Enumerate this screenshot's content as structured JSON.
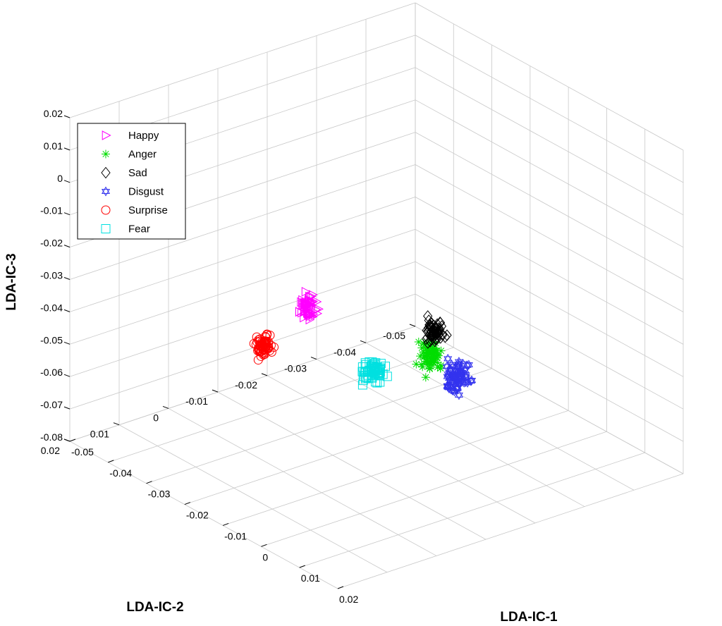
{
  "chart_data": {
    "type": "scatter",
    "projection": "3d",
    "grid": true,
    "legend_position": "top-left",
    "xlabel": "LDA-IC-1",
    "ylabel": "LDA-IC-2",
    "zlabel": "LDA-IC-3",
    "xlim": [
      -0.05,
      0.02
    ],
    "ylim": [
      -0.05,
      0.02
    ],
    "zlim": [
      -0.08,
      0.02
    ],
    "x_ticks": [
      "-0.05",
      "-0.04",
      "-0.03",
      "-0.02",
      "-0.01",
      "0",
      "0.01",
      "0.02"
    ],
    "y_ticks": [
      "-0.05",
      "-0.04",
      "-0.03",
      "-0.02",
      "-0.01",
      "0",
      "0.01",
      "0.02"
    ],
    "z_ticks": [
      "-0.08",
      "-0.07",
      "-0.06",
      "-0.05",
      "-0.04",
      "-0.03",
      "-0.02",
      "-0.01",
      "0",
      "0.01",
      "0.02"
    ],
    "series": [
      {
        "name": "Happy",
        "marker": "triangle-right",
        "color": "#ff00ff",
        "x": -0.006,
        "y": 0.006,
        "z": -0.017,
        "z_spread": 0.0065,
        "xy_spread": 0.0015
      },
      {
        "name": "Anger",
        "marker": "asterisk",
        "color": "#00dd00",
        "x": 0.008,
        "y": -0.008,
        "z": -0.031,
        "z_spread": 0.0085,
        "xy_spread": 0.002
      },
      {
        "name": "Sad",
        "marker": "diamond",
        "color": "#000000",
        "x": 0.009,
        "y": -0.008,
        "z": -0.022,
        "z_spread": 0.0065,
        "xy_spread": 0.0015
      },
      {
        "name": "Disgust",
        "marker": "hexagram",
        "color": "#3333ee",
        "x": 0.011,
        "y": -0.011,
        "z": -0.036,
        "z_spread": 0.009,
        "xy_spread": 0.0018
      },
      {
        "name": "Surprise",
        "marker": "circle",
        "color": "#ff0000",
        "x": -0.011,
        "y": 0.011,
        "z": -0.029,
        "z_spread": 0.0055,
        "xy_spread": 0.0015
      },
      {
        "name": "Fear",
        "marker": "square",
        "color": "#00e0e0",
        "x": -0.035,
        "y": -0.03,
        "z": -0.074,
        "z_spread": 0.0055,
        "xy_spread": 0.002
      }
    ]
  }
}
